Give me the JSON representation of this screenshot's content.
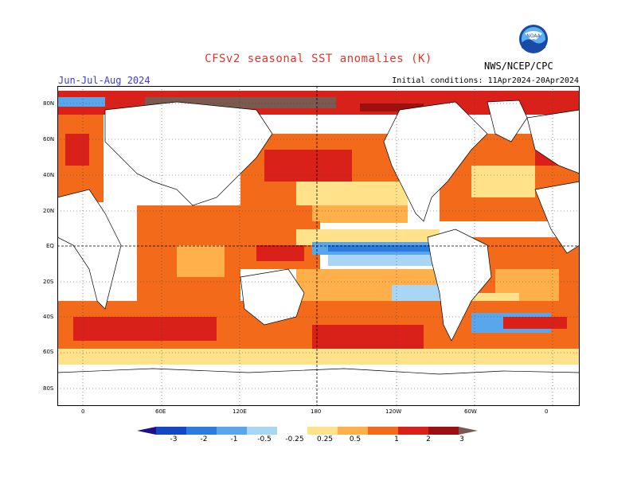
{
  "header": {
    "title": "CFSv2 seasonal SST anomalies (K)",
    "season": "Jun-Jul-Aug 2024",
    "initial_conditions": "Initial conditions: 11Apr2024-20Apr2024",
    "agency": "NWS/NCEP/CPC",
    "logo_text": "NOAA"
  },
  "map": {
    "lat_labels": [
      "80N",
      "60N",
      "40N",
      "20N",
      "EQ",
      "20S",
      "40S",
      "60S",
      "80S"
    ],
    "lon_labels": [
      "0",
      "60E",
      "120E",
      "180",
      "120W",
      "60W",
      "0"
    ]
  },
  "colorbar": {
    "labels": [
      "-3",
      "-2",
      "-1",
      "-0.5",
      "-0.25",
      "0.25",
      "0.5",
      "1",
      "2",
      "3"
    ],
    "colors": [
      "#1e0f8c",
      "#1446c6",
      "#2b7be0",
      "#59a6ec",
      "#a9d6f5",
      "#ffffff",
      "#ffe28a",
      "#ffb04b",
      "#f36a1a",
      "#d9211a",
      "#9e0f0f",
      "#7a5a50"
    ]
  }
}
